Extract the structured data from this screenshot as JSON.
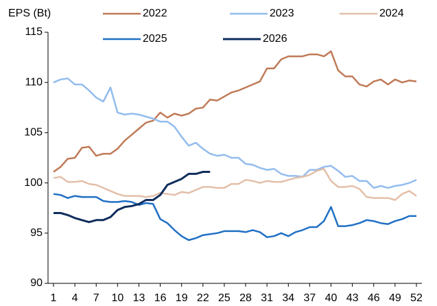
{
  "chart_data": {
    "type": "line",
    "y_label": "EPS (Bt)",
    "x": [
      1,
      2,
      3,
      4,
      5,
      6,
      7,
      8,
      9,
      10,
      11,
      12,
      13,
      14,
      15,
      16,
      17,
      18,
      19,
      20,
      21,
      22,
      23,
      24,
      25,
      26,
      27,
      28,
      29,
      30,
      31,
      32,
      33,
      34,
      35,
      36,
      37,
      38,
      39,
      40,
      41,
      42,
      43,
      44,
      45,
      46,
      47,
      48,
      49,
      50,
      51,
      52
    ],
    "xlim": [
      1,
      52
    ],
    "xticks": [
      1,
      4,
      7,
      10,
      13,
      16,
      19,
      22,
      25,
      28,
      31,
      34,
      37,
      40,
      43,
      46,
      49,
      52
    ],
    "ylim": [
      90,
      115
    ],
    "yticks": [
      90,
      95,
      100,
      105,
      110,
      115
    ],
    "grid": false,
    "series": [
      {
        "name": "2022",
        "color": "#c07a56",
        "values": [
          101.1,
          101.6,
          102.4,
          102.5,
          103.5,
          103.6,
          102.7,
          102.9,
          102.9,
          103.4,
          104.2,
          104.8,
          105.4,
          106,
          106.2,
          107,
          106.5,
          106.9,
          106.7,
          106.9,
          107.4,
          107.5,
          108.3,
          108.2,
          108.6,
          109,
          109.2,
          109.5,
          109.8,
          110.1,
          111.4,
          111.4,
          112.3,
          112.6,
          112.6,
          112.6,
          112.8,
          112.8,
          112.6,
          113.1,
          111.2,
          110.6,
          110.6,
          109.8,
          109.6,
          110.1,
          110.3,
          109.8,
          110.3,
          110,
          110.2,
          110.1
        ]
      },
      {
        "name": "2023",
        "color": "#93bcee",
        "values": [
          110,
          110.3,
          110.4,
          109.8,
          109.8,
          109.2,
          108.5,
          108.1,
          109.5,
          107,
          106.8,
          106.9,
          106.8,
          106.6,
          106.4,
          106.1,
          106.1,
          105.6,
          104.6,
          103.7,
          104,
          103.4,
          102.9,
          102.7,
          102.8,
          102.5,
          102.5,
          101.9,
          101.8,
          101.5,
          101.3,
          101.4,
          100.9,
          100.7,
          100.7,
          100.6,
          101.3,
          101.3,
          101.6,
          101.7,
          101.2,
          100.6,
          100.7,
          100.2,
          100.2,
          99.5,
          99.7,
          99.5,
          99.7,
          99.8,
          100,
          100.3
        ]
      },
      {
        "name": "2024",
        "color": "#e3bfa9",
        "values": [
          100.5,
          100.6,
          100.1,
          100.1,
          100.2,
          99.9,
          99.8,
          99.5,
          99.2,
          98.9,
          98.7,
          98.7,
          98.7,
          98.6,
          98.7,
          99,
          98.9,
          98.8,
          99.1,
          99,
          99.3,
          99.6,
          99.6,
          99.5,
          99.5,
          99.9,
          99.9,
          100.3,
          100.2,
          100,
          100.2,
          100.1,
          100.1,
          100.3,
          100.5,
          100.6,
          100.8,
          101.2,
          101.4,
          100.2,
          99.6,
          99.6,
          99.7,
          99.4,
          98.6,
          98.5,
          98.5,
          98.5,
          98.3,
          98.9,
          99.2,
          98.7
        ]
      },
      {
        "name": "2025",
        "color": "#1f6fc5",
        "values": [
          98.9,
          98.8,
          98.5,
          98.7,
          98.6,
          98.6,
          98.6,
          98.2,
          98.1,
          98.1,
          98.2,
          98.1,
          97.8,
          98,
          97.9,
          96.4,
          96,
          95.3,
          94.7,
          94.3,
          94.5,
          94.8,
          94.9,
          95,
          95.2,
          95.2,
          95.2,
          95.1,
          95.3,
          95.1,
          94.6,
          94.7,
          95,
          94.7,
          95.1,
          95.3,
          95.6,
          95.6,
          96.2,
          97.6,
          95.7,
          95.7,
          95.8,
          96,
          96.3,
          96.2,
          96,
          95.9,
          96.2,
          96.4,
          96.7,
          96.7
        ]
      },
      {
        "name": "2026",
        "color": "#0f2d5c",
        "values": [
          97,
          97,
          96.8,
          96.5,
          96.3,
          96.1,
          96.3,
          96.3,
          96.6,
          97.3,
          97.6,
          97.7,
          97.9,
          98.3,
          98.3,
          98.8,
          99.8,
          100.1,
          100.4,
          100.9,
          100.9,
          101.1,
          101.1,
          null,
          null,
          null,
          null,
          null,
          null,
          null,
          null,
          null,
          null,
          null,
          null,
          null,
          null,
          null,
          null,
          null,
          null,
          null,
          null,
          null,
          null,
          null,
          null,
          null,
          null,
          null,
          null,
          null
        ]
      }
    ]
  }
}
